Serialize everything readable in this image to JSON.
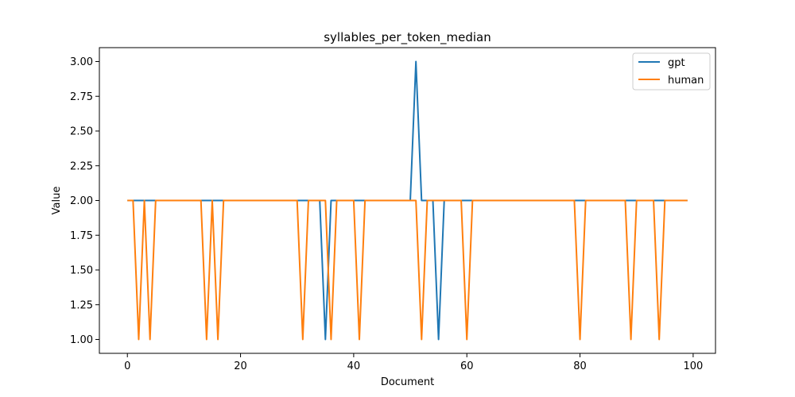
{
  "chart_data": {
    "type": "line",
    "title": "syllables_per_token_median",
    "xlabel": "Document",
    "ylabel": "Value",
    "xlim": [
      -4.95,
      103.95
    ],
    "ylim": [
      0.9,
      3.1
    ],
    "x_ticks": [
      0,
      20,
      40,
      60,
      80,
      100
    ],
    "y_ticks": [
      1.0,
      1.25,
      1.5,
      1.75,
      2.0,
      2.25,
      2.5,
      2.75,
      3.0
    ],
    "x_tick_labels": [
      "0",
      "20",
      "40",
      "60",
      "80",
      "100"
    ],
    "y_tick_labels": [
      "1.00",
      "1.25",
      "1.50",
      "1.75",
      "2.00",
      "2.25",
      "2.50",
      "2.75",
      "3.00"
    ],
    "grid": false,
    "legend_position": "top-right",
    "x": [
      0,
      1,
      2,
      3,
      4,
      5,
      6,
      7,
      8,
      9,
      10,
      11,
      12,
      13,
      14,
      15,
      16,
      17,
      18,
      19,
      20,
      21,
      22,
      23,
      24,
      25,
      26,
      27,
      28,
      29,
      30,
      31,
      32,
      33,
      34,
      35,
      36,
      37,
      38,
      39,
      40,
      41,
      42,
      43,
      44,
      45,
      46,
      47,
      48,
      49,
      50,
      51,
      52,
      53,
      54,
      55,
      56,
      57,
      58,
      59,
      60,
      61,
      62,
      63,
      64,
      65,
      66,
      67,
      68,
      69,
      70,
      71,
      72,
      73,
      74,
      75,
      76,
      77,
      78,
      79,
      80,
      81,
      82,
      83,
      84,
      85,
      86,
      87,
      88,
      89,
      90,
      91,
      92,
      93,
      94,
      95,
      96,
      97,
      98,
      99
    ],
    "series": [
      {
        "name": "gpt",
        "color": "#1f77b4",
        "values": [
          2,
          2,
          2,
          2,
          2,
          2,
          2,
          2,
          2,
          2,
          2,
          2,
          2,
          2,
          2,
          2,
          2,
          2,
          2,
          2,
          2,
          2,
          2,
          2,
          2,
          2,
          2,
          2,
          2,
          2,
          2,
          2,
          2,
          2,
          2,
          1,
          2,
          2,
          2,
          2,
          2,
          2,
          2,
          2,
          2,
          2,
          2,
          2,
          2,
          2,
          2,
          3,
          2,
          2,
          2,
          1,
          2,
          2,
          2,
          2,
          2,
          2,
          2,
          2,
          2,
          2,
          2,
          2,
          2,
          2,
          2,
          2,
          2,
          2,
          2,
          2,
          2,
          2,
          2,
          2,
          2,
          2,
          2,
          2,
          2,
          2,
          2,
          2,
          2,
          2,
          2,
          2,
          2,
          2,
          2,
          2,
          2,
          2,
          2,
          2
        ]
      },
      {
        "name": "human",
        "color": "#ff7f0e",
        "values": [
          2,
          2,
          1,
          2,
          1,
          2,
          2,
          2,
          2,
          2,
          2,
          2,
          2,
          2,
          1,
          2,
          1,
          2,
          2,
          2,
          2,
          2,
          2,
          2,
          2,
          2,
          2,
          2,
          2,
          2,
          2,
          1,
          2,
          2,
          2,
          2,
          1,
          2,
          2,
          2,
          2,
          1,
          2,
          2,
          2,
          2,
          2,
          2,
          2,
          2,
          2,
          2,
          1,
          2,
          2,
          2,
          2,
          2,
          2,
          2,
          1,
          2,
          2,
          2,
          2,
          2,
          2,
          2,
          2,
          2,
          2,
          2,
          2,
          2,
          2,
          2,
          2,
          2,
          2,
          2,
          1,
          2,
          2,
          2,
          2,
          2,
          2,
          2,
          2,
          1,
          2,
          2,
          2,
          2,
          1,
          2,
          2,
          2,
          2,
          2
        ]
      }
    ]
  }
}
